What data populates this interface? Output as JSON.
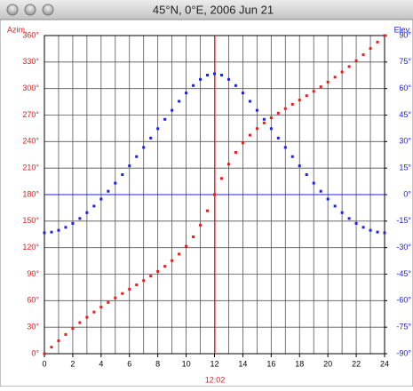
{
  "window_title": "45°N, 0°E, 2006 Jun 21",
  "chart_data": {
    "type": "scatter",
    "y_label": "Azim.",
    "y2_label": "Elev.",
    "x": [
      0,
      0.5,
      1,
      1.5,
      2,
      2.5,
      3,
      3.5,
      4,
      4.5,
      5,
      5.5,
      6,
      6.5,
      7,
      7.5,
      8,
      8.5,
      9,
      9.5,
      10,
      10.5,
      11,
      11.5,
      12,
      12.5,
      13,
      13.5,
      14,
      14.5,
      15,
      15.5,
      16,
      16.5,
      17,
      17.5,
      18,
      18.5,
      19,
      19.5,
      20,
      20.5,
      21,
      21.5,
      22,
      22.5,
      23,
      23.5,
      24
    ],
    "series": [
      {
        "name": "Azim.",
        "color": "#e02020",
        "axis": "y",
        "values": [
          0,
          7.4,
          14.6,
          21.7,
          28.5,
          35.1,
          41.2,
          47.1,
          52.7,
          58.0,
          63.1,
          68.1,
          73.0,
          77.8,
          82.7,
          87.8,
          93.1,
          98.9,
          105.3,
          112.7,
          121.5,
          132.2,
          145.5,
          161.7,
          180,
          198.3,
          214.5,
          227.8,
          238.5,
          247.3,
          254.7,
          261.1,
          266.9,
          272.2,
          277.3,
          282.2,
          287.0,
          291.9,
          296.9,
          302.0,
          307.3,
          312.9,
          318.8,
          324.9,
          331.5,
          338.3,
          345.4,
          352.6,
          360
        ]
      },
      {
        "name": "Elev.",
        "color": "#2020e0",
        "axis": "y2",
        "values": [
          -21.6,
          -21.2,
          -20.2,
          -18.5,
          -16.3,
          -13.5,
          -10.2,
          -6.5,
          -2.5,
          1.9,
          6.5,
          11.3,
          16.3,
          21.5,
          26.7,
          32.0,
          37.3,
          42.6,
          47.7,
          52.8,
          57.5,
          61.7,
          65.2,
          67.6,
          68.4,
          67.6,
          65.2,
          61.7,
          57.5,
          52.8,
          47.7,
          42.6,
          37.3,
          32.0,
          26.7,
          21.5,
          16.3,
          11.3,
          6.5,
          1.9,
          -2.5,
          -6.5,
          -10.2,
          -13.5,
          -16.3,
          -18.5,
          -20.2,
          -21.2,
          -21.6
        ]
      }
    ],
    "xlim": [
      0,
      24
    ],
    "xticks": [
      0,
      2,
      4,
      6,
      8,
      10,
      12,
      14,
      16,
      18,
      20,
      22,
      24
    ],
    "xgrid_interval": 1,
    "ylim": [
      0,
      360
    ],
    "yticks": [
      {
        "value": 0,
        "label": "0°"
      },
      {
        "value": 30,
        "label": "30°"
      },
      {
        "value": 60,
        "label": "60°"
      },
      {
        "value": 90,
        "label": "90°"
      },
      {
        "value": 120,
        "label": "120°"
      },
      {
        "value": 150,
        "label": "150°"
      },
      {
        "value": 180,
        "label": "180°"
      },
      {
        "value": 210,
        "label": "210°"
      },
      {
        "value": 240,
        "label": "240°"
      },
      {
        "value": 270,
        "label": "270°"
      },
      {
        "value": 300,
        "label": "300°"
      },
      {
        "value": 330,
        "label": "330°"
      },
      {
        "value": 360,
        "label": "360°"
      }
    ],
    "y2lim": [
      -90,
      90
    ],
    "y2ticks": [
      {
        "value": -90,
        "label": "-90°"
      },
      {
        "value": -75,
        "label": "-75°"
      },
      {
        "value": -60,
        "label": "-60°"
      },
      {
        "value": -45,
        "label": "-45°"
      },
      {
        "value": -30,
        "label": "-30°"
      },
      {
        "value": -15,
        "label": "-15°"
      },
      {
        "value": 0,
        "label": "0°"
      },
      {
        "value": 15,
        "label": "15°"
      },
      {
        "value": 30,
        "label": "30°"
      },
      {
        "value": 45,
        "label": "45°"
      },
      {
        "value": 60,
        "label": "60°"
      },
      {
        "value": 75,
        "label": "75°"
      },
      {
        "value": 90,
        "label": "90°"
      }
    ],
    "x_marker": {
      "value": 12.033,
      "label": "12:02",
      "color": "#e02020"
    },
    "y2_reference": {
      "value": 0,
      "color": "#2020e0"
    },
    "grid": true
  }
}
